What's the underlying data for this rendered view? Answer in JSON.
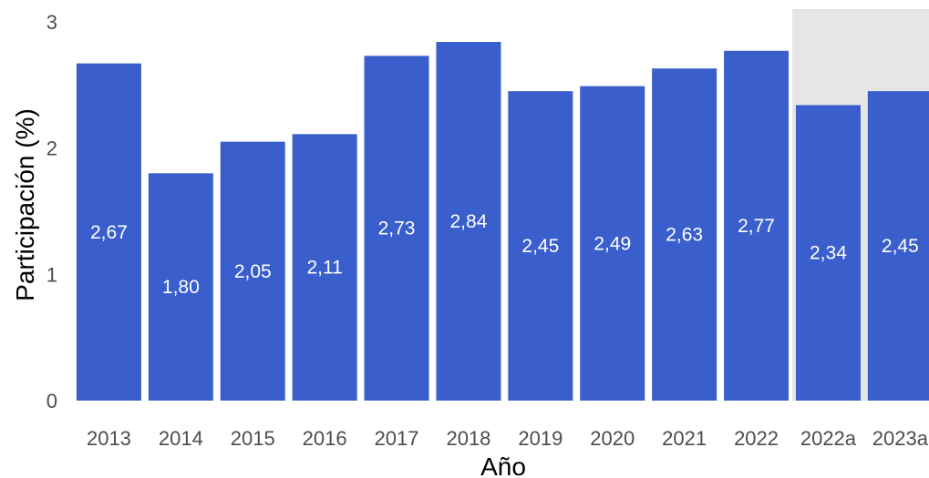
{
  "chart_data": {
    "type": "bar",
    "categories": [
      "2013",
      "2014",
      "2015",
      "2016",
      "2017",
      "2018",
      "2019",
      "2020",
      "2021",
      "2022",
      "2022a",
      "2023a"
    ],
    "values": [
      2.67,
      1.8,
      2.05,
      2.11,
      2.73,
      2.84,
      2.45,
      2.49,
      2.63,
      2.77,
      2.34,
      2.45
    ],
    "value_labels": [
      "2,67",
      "1,80",
      "2,05",
      "2,11",
      "2,73",
      "2,84",
      "2,45",
      "2,49",
      "2,63",
      "2,77",
      "2,34",
      "2,45"
    ],
    "title": "",
    "xlabel": "Año",
    "ylabel": "Participación (%)",
    "ylim": [
      0,
      3.1
    ],
    "yticks": [
      0,
      1,
      2,
      3
    ],
    "ytick_labels": [
      "0",
      "1",
      "2",
      "3"
    ],
    "grid": false,
    "highlight_categories": [
      "2022a",
      "2023a"
    ],
    "colors": {
      "bar": "#3a5fcd",
      "highlight_band": "#e6e6e6",
      "label": "#ffffff"
    }
  }
}
